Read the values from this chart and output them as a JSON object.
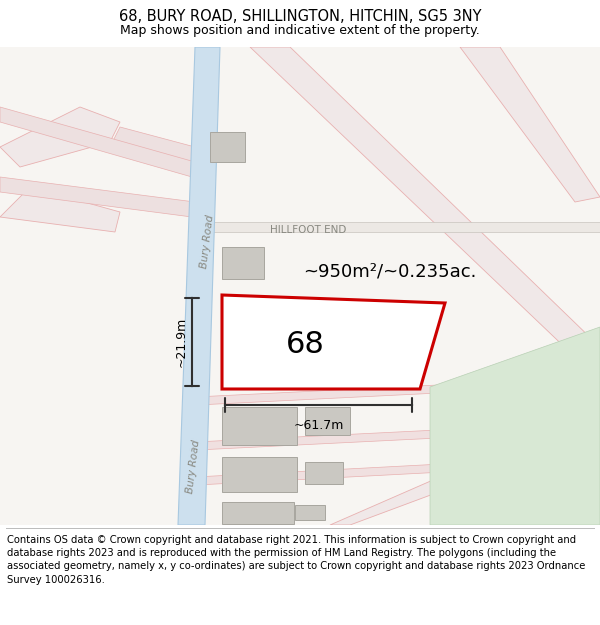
{
  "title": "68, BURY ROAD, SHILLINGTON, HITCHIN, SG5 3NY",
  "subtitle": "Map shows position and indicative extent of the property.",
  "footer": "Contains OS data © Crown copyright and database right 2021. This information is subject to Crown copyright and database rights 2023 and is reproduced with the permission of HM Land Registry. The polygons (including the associated geometry, namely x, y co-ordinates) are subject to Crown copyright and database rights 2023 Ordnance Survey 100026316.",
  "area_text": "~950m²/~0.235ac.",
  "label_68": "68",
  "dim_width": "~61.7m",
  "dim_height": "~21.9m",
  "road_label_upper": "Bury Road",
  "road_label_lower": "Bury Road",
  "hillfoot_label": "HILLFOOT END",
  "map_bg": "#f7f5f2",
  "road_blue_fill": "#cde0ee",
  "road_blue_stroke": "#a8c8e0",
  "plot_stroke": "#cc0000",
  "building_fill": "#cac8c2",
  "building_stroke": "#a8a69f",
  "pink_line_color": "#e8b0b0",
  "grey_line_color": "#c8c4be",
  "green_area_fill": "#d8e8d4",
  "green_area_stroke": "#b8d0b4",
  "title_fontsize": 10.5,
  "subtitle_fontsize": 9,
  "footer_fontsize": 7.2,
  "label_color": "#888880",
  "dim_line_color": "#303030"
}
